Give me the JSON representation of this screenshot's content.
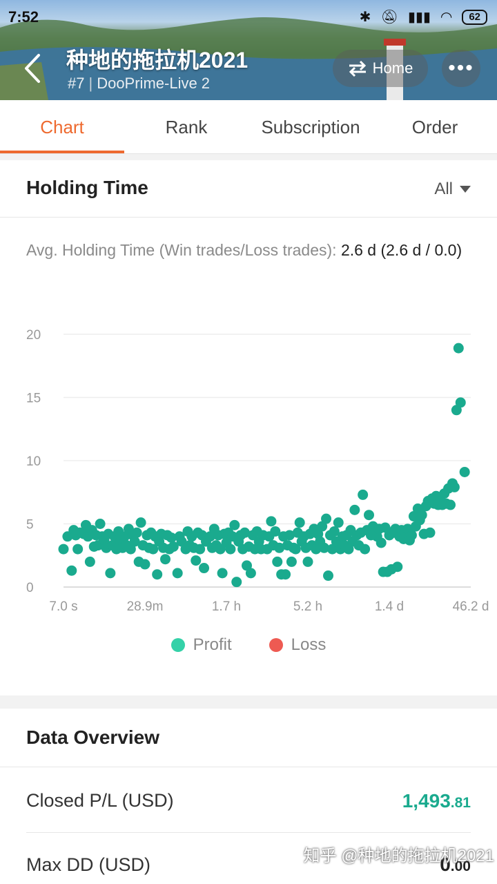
{
  "status_bar": {
    "time": "7:52",
    "battery": "62"
  },
  "header": {
    "title": "种地的拖拉机2021",
    "rank": "#7",
    "server": "DooPrime-Live 2",
    "home_label": "Home"
  },
  "tabs": [
    {
      "label": "Chart",
      "active": true
    },
    {
      "label": "Rank",
      "active": false
    },
    {
      "label": "Subscription",
      "active": false
    },
    {
      "label": "Order",
      "active": false
    }
  ],
  "holding_time": {
    "title": "Holding Time",
    "filter": "All",
    "avg_label": "Avg. Holding Time (Win trades/Loss trades):",
    "avg_value": "2.6 d (2.6 d / 0.0)"
  },
  "chart_data": {
    "type": "scatter",
    "y_ticks": [
      "20",
      "15",
      "10",
      "5",
      "0"
    ],
    "x_ticks": [
      "7.0 s",
      "28.9m",
      "1.7 h",
      "5.2 h",
      "1.4 d",
      "46.2 d"
    ],
    "ylim": [
      0,
      20
    ],
    "grid": true,
    "legend": [
      "Profit",
      "Loss"
    ],
    "legend_position": "bottom-center",
    "colors": {
      "profit": "#1aaa8e",
      "profit_legend": "#34d1a8",
      "loss": "#ee5a52"
    },
    "series": [
      {
        "name": "Profit",
        "points": [
          [
            0.0,
            3.0
          ],
          [
            0.01,
            4.0
          ],
          [
            0.02,
            1.3
          ],
          [
            0.025,
            4.5
          ],
          [
            0.03,
            4.1
          ],
          [
            0.035,
            3.0
          ],
          [
            0.04,
            4.3
          ],
          [
            0.05,
            4.2
          ],
          [
            0.055,
            4.9
          ],
          [
            0.06,
            4.0
          ],
          [
            0.065,
            2.0
          ],
          [
            0.07,
            4.5
          ],
          [
            0.075,
            3.2
          ],
          [
            0.08,
            4.1
          ],
          [
            0.085,
            3.3
          ],
          [
            0.09,
            5.0
          ],
          [
            0.095,
            4.0
          ],
          [
            0.1,
            3.7
          ],
          [
            0.105,
            3.1
          ],
          [
            0.11,
            4.2
          ],
          [
            0.115,
            1.1
          ],
          [
            0.12,
            3.3
          ],
          [
            0.125,
            4.0
          ],
          [
            0.13,
            3.0
          ],
          [
            0.135,
            4.4
          ],
          [
            0.14,
            3.6
          ],
          [
            0.145,
            3.1
          ],
          [
            0.15,
            4.0
          ],
          [
            0.155,
            3.3
          ],
          [
            0.16,
            4.6
          ],
          [
            0.165,
            3.0
          ],
          [
            0.17,
            4.1
          ],
          [
            0.175,
            3.6
          ],
          [
            0.18,
            4.3
          ],
          [
            0.185,
            2.0
          ],
          [
            0.19,
            5.1
          ],
          [
            0.195,
            3.3
          ],
          [
            0.2,
            1.8
          ],
          [
            0.205,
            4.1
          ],
          [
            0.21,
            3.1
          ],
          [
            0.215,
            4.3
          ],
          [
            0.22,
            3.0
          ],
          [
            0.225,
            4.0
          ],
          [
            0.23,
            1.0
          ],
          [
            0.235,
            3.6
          ],
          [
            0.24,
            4.2
          ],
          [
            0.245,
            3.1
          ],
          [
            0.25,
            2.2
          ],
          [
            0.255,
            4.1
          ],
          [
            0.26,
            3.0
          ],
          [
            0.265,
            3.9
          ],
          [
            0.27,
            3.2
          ],
          [
            0.28,
            1.1
          ],
          [
            0.285,
            4.0
          ],
          [
            0.29,
            3.6
          ],
          [
            0.3,
            3.0
          ],
          [
            0.305,
            4.4
          ],
          [
            0.31,
            3.3
          ],
          [
            0.315,
            4.0
          ],
          [
            0.32,
            3.1
          ],
          [
            0.325,
            2.1
          ],
          [
            0.33,
            4.3
          ],
          [
            0.335,
            3.0
          ],
          [
            0.34,
            4.1
          ],
          [
            0.345,
            1.5
          ],
          [
            0.35,
            3.6
          ],
          [
            0.36,
            4.0
          ],
          [
            0.365,
            3.1
          ],
          [
            0.37,
            4.6
          ],
          [
            0.375,
            3.3
          ],
          [
            0.38,
            4.1
          ],
          [
            0.385,
            3.0
          ],
          [
            0.39,
            1.1
          ],
          [
            0.395,
            4.2
          ],
          [
            0.4,
            3.5
          ],
          [
            0.405,
            4.3
          ],
          [
            0.41,
            3.0
          ],
          [
            0.415,
            4.0
          ],
          [
            0.42,
            4.9
          ],
          [
            0.425,
            0.4
          ],
          [
            0.43,
            3.6
          ],
          [
            0.435,
            4.1
          ],
          [
            0.44,
            3.0
          ],
          [
            0.445,
            4.3
          ],
          [
            0.45,
            1.7
          ],
          [
            0.455,
            3.2
          ],
          [
            0.46,
            1.1
          ],
          [
            0.465,
            4.1
          ],
          [
            0.47,
            3.0
          ],
          [
            0.475,
            4.4
          ],
          [
            0.48,
            3.6
          ],
          [
            0.485,
            3.0
          ],
          [
            0.49,
            4.1
          ],
          [
            0.5,
            3.0
          ],
          [
            0.505,
            4.0
          ],
          [
            0.51,
            5.2
          ],
          [
            0.515,
            3.3
          ],
          [
            0.52,
            4.4
          ],
          [
            0.525,
            2.0
          ],
          [
            0.53,
            3.1
          ],
          [
            0.535,
            1.0
          ],
          [
            0.54,
            4.0
          ],
          [
            0.545,
            1.0
          ],
          [
            0.55,
            3.3
          ],
          [
            0.555,
            4.1
          ],
          [
            0.56,
            2.0
          ],
          [
            0.565,
            3.1
          ],
          [
            0.57,
            3.0
          ],
          [
            0.575,
            4.3
          ],
          [
            0.58,
            5.1
          ],
          [
            0.585,
            3.6
          ],
          [
            0.59,
            4.0
          ],
          [
            0.595,
            3.1
          ],
          [
            0.6,
            2.0
          ],
          [
            0.605,
            4.2
          ],
          [
            0.61,
            3.3
          ],
          [
            0.615,
            4.6
          ],
          [
            0.62,
            3.0
          ],
          [
            0.625,
            4.2
          ],
          [
            0.63,
            3.6
          ],
          [
            0.635,
            4.8
          ],
          [
            0.64,
            3.1
          ],
          [
            0.645,
            5.4
          ],
          [
            0.65,
            0.9
          ],
          [
            0.655,
            4.1
          ],
          [
            0.66,
            3.0
          ],
          [
            0.665,
            4.4
          ],
          [
            0.67,
            3.6
          ],
          [
            0.675,
            5.1
          ],
          [
            0.68,
            3.0
          ],
          [
            0.685,
            4.0
          ],
          [
            0.69,
            3.3
          ],
          [
            0.695,
            4.1
          ],
          [
            0.7,
            3.0
          ],
          [
            0.705,
            4.5
          ],
          [
            0.71,
            3.6
          ],
          [
            0.715,
            6.1
          ],
          [
            0.72,
            4.1
          ],
          [
            0.725,
            3.3
          ],
          [
            0.73,
            4.3
          ],
          [
            0.735,
            7.3
          ],
          [
            0.74,
            3.0
          ],
          [
            0.745,
            4.5
          ],
          [
            0.75,
            5.7
          ],
          [
            0.755,
            4.1
          ],
          [
            0.76,
            4.8
          ],
          [
            0.765,
            4.3
          ],
          [
            0.77,
            4.0
          ],
          [
            0.775,
            4.6
          ],
          [
            0.78,
            3.5
          ],
          [
            0.785,
            1.2
          ],
          [
            0.79,
            4.7
          ],
          [
            0.795,
            1.2
          ],
          [
            0.8,
            4.1
          ],
          [
            0.805,
            1.4
          ],
          [
            0.81,
            4.3
          ],
          [
            0.815,
            4.6
          ],
          [
            0.82,
            1.6
          ],
          [
            0.825,
            4.0
          ],
          [
            0.83,
            4.5
          ],
          [
            0.835,
            3.8
          ],
          [
            0.84,
            4.3
          ],
          [
            0.845,
            4.6
          ],
          [
            0.85,
            3.7
          ],
          [
            0.855,
            4.1
          ],
          [
            0.86,
            5.6
          ],
          [
            0.865,
            4.8
          ],
          [
            0.87,
            6.2
          ],
          [
            0.875,
            5.3
          ],
          [
            0.88,
            5.7
          ],
          [
            0.885,
            4.2
          ],
          [
            0.89,
            6.4
          ],
          [
            0.895,
            6.8
          ],
          [
            0.9,
            4.3
          ],
          [
            0.905,
            7.0
          ],
          [
            0.91,
            6.6
          ],
          [
            0.915,
            7.2
          ],
          [
            0.92,
            6.5
          ],
          [
            0.925,
            6.8
          ],
          [
            0.93,
            6.5
          ],
          [
            0.935,
            7.4
          ],
          [
            0.94,
            6.6
          ],
          [
            0.945,
            7.8
          ],
          [
            0.95,
            6.5
          ],
          [
            0.955,
            8.2
          ],
          [
            0.96,
            7.9
          ],
          [
            0.965,
            14.0
          ],
          [
            0.97,
            18.9
          ],
          [
            0.975,
            14.6
          ],
          [
            0.985,
            9.1
          ]
        ]
      },
      {
        "name": "Loss",
        "points": []
      }
    ]
  },
  "data_overview": {
    "title": "Data Overview",
    "rows": [
      {
        "label": "Closed P/L (USD)",
        "int": "1,493",
        "dec": ".81"
      },
      {
        "label": "Max DD (USD)",
        "int": "0",
        "dec": ".00"
      }
    ]
  },
  "watermark": "知乎 @种地的拖拉机2021"
}
